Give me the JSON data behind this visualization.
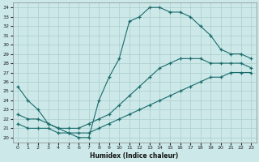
{
  "xlabel": "Humidex (Indice chaleur)",
  "xlim": [
    -0.5,
    23.5
  ],
  "ylim": [
    19.5,
    34.5
  ],
  "yticks": [
    20,
    21,
    22,
    23,
    24,
    25,
    26,
    27,
    28,
    29,
    30,
    31,
    32,
    33,
    34
  ],
  "xticks": [
    0,
    1,
    2,
    3,
    4,
    5,
    6,
    7,
    8,
    9,
    10,
    11,
    12,
    13,
    14,
    15,
    16,
    17,
    18,
    19,
    20,
    21,
    22,
    23
  ],
  "bg_color": "#cce8e8",
  "grid_color": "#aacece",
  "line_color": "#1a6b6b",
  "series": [
    {
      "x": [
        0,
        1,
        2,
        3,
        4,
        5,
        6,
        7,
        8,
        9,
        10,
        11,
        12,
        13,
        14,
        15,
        16,
        17,
        18,
        19,
        20,
        21,
        22,
        23
      ],
      "y": [
        21.5,
        21.0,
        21.0,
        21.0,
        20.5,
        20.5,
        20.5,
        20.5,
        21.0,
        21.5,
        22.0,
        22.5,
        23.0,
        23.5,
        24.0,
        24.5,
        25.0,
        25.5,
        26.0,
        26.5,
        26.5,
        27.0,
        27.0,
        27.0
      ]
    },
    {
      "x": [
        0,
        1,
        2,
        3,
        4,
        5,
        6,
        7,
        8,
        9,
        10,
        11,
        12,
        13,
        14,
        15,
        16,
        17,
        18,
        19,
        20,
        21,
        22,
        23
      ],
      "y": [
        22.5,
        22.0,
        22.0,
        21.5,
        21.0,
        21.0,
        21.0,
        21.5,
        22.0,
        22.5,
        23.5,
        24.5,
        25.5,
        26.5,
        27.5,
        28.0,
        28.5,
        28.5,
        28.5,
        28.0,
        28.0,
        28.0,
        28.0,
        27.5
      ]
    },
    {
      "x": [
        0,
        1,
        2,
        3,
        4,
        5,
        6,
        7,
        8,
        9,
        10,
        11,
        12,
        13,
        14,
        15,
        16,
        17,
        18,
        19,
        20,
        21,
        22,
        23
      ],
      "y": [
        25.5,
        24.0,
        23.0,
        21.5,
        21.0,
        20.5,
        20.0,
        20.0,
        24.0,
        26.5,
        28.5,
        32.5,
        33.0,
        34.0,
        34.0,
        33.5,
        33.5,
        33.0,
        32.0,
        31.0,
        29.5,
        29.0,
        29.0,
        28.5
      ]
    }
  ]
}
